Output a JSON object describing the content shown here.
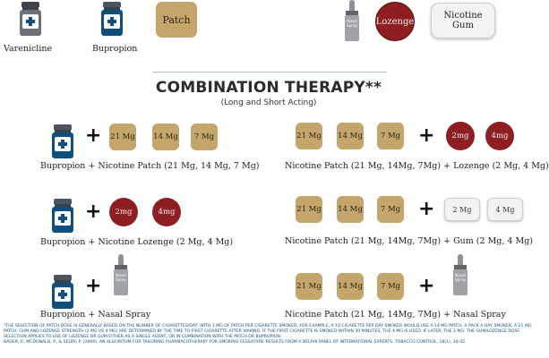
{
  "top_row": {
    "varenicline_label": "Varenicline",
    "bupropion_label": "Bupropion",
    "patch_label": "Patch",
    "spray_label": "Nasal Spray",
    "lozenge_label": "Lozenge",
    "gum_label": "Nicotine Gum"
  },
  "section": {
    "title": "COMBINATION THERAPY**",
    "subtitle": "(Long and Short Acting)"
  },
  "doses": {
    "patch_21": "21 Mg",
    "patch_14": "14 Mg",
    "patch_7": "7 Mg",
    "loz_2": "2mg",
    "loz_4": "4mg",
    "gum_2": "2 Mg",
    "gum_4": "4 Mg",
    "spray": "Nasal Spray",
    "plus": "+"
  },
  "combos": {
    "bup_patch": "Bupropion + Nicotine Patch (21 Mg, 14 Mg, 7 Mg)",
    "bup_lozenge": "Bupropion + Nicotine Lozenge  (2 Mg, 4 Mg)",
    "bup_spray": "Bupropion + Nasal Spray",
    "patch_lozenge": "Nicotine Patch (21 Mg, 14Mg, 7Mg) + Lozenge (2 Mg, 4 Mg)",
    "patch_gum": "Nicotine Patch (21 Mg, 14Mg, 7Mg) + Gum (2 Mg, 4 Mg)",
    "patch_spray": "Nicotine Patch (21 Mg, 14Mg, 7Mg) + Nasal Spray"
  },
  "footnote": {
    "text": "*The selection of patch dose is generally based on the number of cigarettes/day, with 1 mg of patch per cigarette smoked. For example, a 10 cigarette per day smoker would use a 14 mg patch. A pack a day smoker, a 21 mg patch. Gum and lozenge strength (2 mg vs 4 mg) are determined by the time to first cigarette after waking. If the first cigarette is smoked within 30 minutes, the 4 mg is used. If later, the 2 mg. The gum/lozenge dose selection applies to use of lozenge or gum either as a single agent, or in combination with the patch or bupropion.",
    "citation": "Bader, P., McDonald, P., & Selby, P. (2009). An algorithm for tailoring pharmacotherapy for smoking cessation: results from a Delphi panel of international experts. Tobacco Control, 18(1), 34-42."
  },
  "colors": {
    "patch": "#c4a56b",
    "lozenge": "#8d1f22",
    "bottle": "#0f4f7d",
    "footnote": "#0f4f7d"
  },
  "icons": [
    "pill-bottle-icon",
    "nasal-spray-icon",
    "patch-icon",
    "lozenge-icon",
    "gum-icon",
    "plus-icon"
  ]
}
